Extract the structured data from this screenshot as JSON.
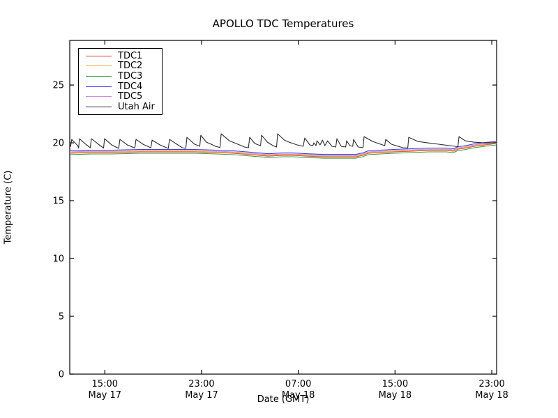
{
  "figure": {
    "background_color": "#ffffff",
    "axes_color": "#000000"
  },
  "chart_data": {
    "type": "line",
    "title": "APOLLO TDC Temperatures",
    "xlabel": "Date (GMT)",
    "ylabel": "Temperature (C)",
    "grid": false,
    "legend_position": "upper left",
    "x_unit": "hours after May 17 12:00 GMT",
    "xlim": [
      0.1,
      35.4
    ],
    "ylim": [
      0,
      28.86
    ],
    "yticks": [
      0,
      5,
      10,
      15,
      20,
      25
    ],
    "xticks": [
      {
        "x": 3,
        "time": "15:00",
        "date": "May 17"
      },
      {
        "x": 11,
        "time": "23:00",
        "date": "May 17"
      },
      {
        "x": 19,
        "time": "07:00",
        "date": "May 18"
      },
      {
        "x": 27,
        "time": "15:00",
        "date": "May 18"
      },
      {
        "x": 35,
        "time": "23:00",
        "date": "May 18"
      }
    ],
    "series": [
      {
        "name": "TDC1",
        "color": "#e53333",
        "points": [
          [
            0.1,
            19.1
          ],
          [
            1.83,
            19.16
          ],
          [
            3.56,
            19.16
          ],
          [
            5.86,
            19.22
          ],
          [
            8.17,
            19.22
          ],
          [
            10.48,
            19.22
          ],
          [
            12.21,
            19.16
          ],
          [
            13.65,
            19.1
          ],
          [
            15.1,
            18.98
          ],
          [
            16.54,
            18.85
          ],
          [
            17.69,
            18.92
          ],
          [
            18.56,
            18.92
          ],
          [
            19.71,
            18.85
          ],
          [
            21.15,
            18.79
          ],
          [
            22.59,
            18.79
          ],
          [
            23.75,
            18.79
          ],
          [
            24.32,
            18.92
          ],
          [
            24.78,
            19.1
          ],
          [
            25.76,
            19.16
          ],
          [
            26.92,
            19.22
          ],
          [
            28.36,
            19.28
          ],
          [
            29.8,
            19.34
          ],
          [
            31.25,
            19.34
          ],
          [
            31.82,
            19.28
          ],
          [
            32.23,
            19.46
          ],
          [
            32.69,
            19.52
          ],
          [
            33.56,
            19.7
          ],
          [
            34.42,
            19.82
          ],
          [
            35.4,
            19.94
          ]
        ]
      },
      {
        "name": "TDC2",
        "color": "#f5a83c",
        "points": [
          [
            0.1,
            19.15
          ],
          [
            1.83,
            19.21
          ],
          [
            3.56,
            19.21
          ],
          [
            5.86,
            19.27
          ],
          [
            8.17,
            19.27
          ],
          [
            10.48,
            19.27
          ],
          [
            12.21,
            19.21
          ],
          [
            13.65,
            19.15
          ],
          [
            15.1,
            19.03
          ],
          [
            16.54,
            18.9
          ],
          [
            17.69,
            18.97
          ],
          [
            18.56,
            18.97
          ],
          [
            19.71,
            18.9
          ],
          [
            21.15,
            18.84
          ],
          [
            22.59,
            18.84
          ],
          [
            23.75,
            18.84
          ],
          [
            24.32,
            18.97
          ],
          [
            24.78,
            19.15
          ],
          [
            25.76,
            19.21
          ],
          [
            26.92,
            19.27
          ],
          [
            28.36,
            19.33
          ],
          [
            29.8,
            19.39
          ],
          [
            31.25,
            19.39
          ],
          [
            31.82,
            19.33
          ],
          [
            32.23,
            19.51
          ],
          [
            32.69,
            19.57
          ],
          [
            33.56,
            19.75
          ],
          [
            34.42,
            19.87
          ],
          [
            35.4,
            19.99
          ]
        ]
      },
      {
        "name": "TDC3",
        "color": "#3a9a3a",
        "points": [
          [
            0.1,
            18.98
          ],
          [
            1.83,
            19.04
          ],
          [
            3.56,
            19.04
          ],
          [
            5.86,
            19.1
          ],
          [
            8.17,
            19.1
          ],
          [
            10.48,
            19.1
          ],
          [
            12.21,
            19.04
          ],
          [
            13.65,
            18.98
          ],
          [
            15.1,
            18.86
          ],
          [
            16.54,
            18.73
          ],
          [
            17.69,
            18.8
          ],
          [
            18.56,
            18.8
          ],
          [
            19.71,
            18.73
          ],
          [
            21.15,
            18.67
          ],
          [
            22.59,
            18.67
          ],
          [
            23.75,
            18.67
          ],
          [
            24.32,
            18.8
          ],
          [
            24.78,
            18.98
          ],
          [
            25.76,
            19.04
          ],
          [
            26.92,
            19.1
          ],
          [
            28.36,
            19.16
          ],
          [
            29.8,
            19.22
          ],
          [
            31.25,
            19.22
          ],
          [
            31.82,
            19.16
          ],
          [
            32.23,
            19.34
          ],
          [
            32.69,
            19.4
          ],
          [
            33.56,
            19.58
          ],
          [
            34.42,
            19.7
          ],
          [
            35.4,
            19.82
          ]
        ]
      },
      {
        "name": "TDC4",
        "color": "#3c3ce6",
        "points": [
          [
            0.1,
            19.31
          ],
          [
            1.83,
            19.37
          ],
          [
            3.56,
            19.37
          ],
          [
            5.86,
            19.43
          ],
          [
            8.17,
            19.43
          ],
          [
            10.48,
            19.43
          ],
          [
            12.21,
            19.37
          ],
          [
            13.65,
            19.31
          ],
          [
            15.1,
            19.19
          ],
          [
            16.54,
            19.06
          ],
          [
            17.69,
            19.13
          ],
          [
            18.56,
            19.13
          ],
          [
            19.71,
            19.06
          ],
          [
            21.15,
            19.0
          ],
          [
            22.59,
            19.0
          ],
          [
            23.75,
            19.0
          ],
          [
            24.32,
            19.13
          ],
          [
            24.78,
            19.31
          ],
          [
            25.76,
            19.37
          ],
          [
            26.92,
            19.43
          ],
          [
            28.36,
            19.49
          ],
          [
            29.8,
            19.55
          ],
          [
            31.25,
            19.55
          ],
          [
            31.82,
            19.49
          ],
          [
            32.23,
            19.67
          ],
          [
            32.69,
            19.73
          ],
          [
            33.56,
            19.91
          ],
          [
            34.42,
            20.03
          ],
          [
            35.4,
            20.12
          ]
        ]
      },
      {
        "name": "TDC5",
        "color": "#c98fd6",
        "points": [
          [
            0.1,
            19.22
          ],
          [
            1.83,
            19.28
          ],
          [
            3.56,
            19.28
          ],
          [
            5.86,
            19.34
          ],
          [
            8.17,
            19.34
          ],
          [
            10.48,
            19.34
          ],
          [
            12.21,
            19.28
          ],
          [
            13.65,
            19.22
          ],
          [
            15.1,
            19.1
          ],
          [
            16.54,
            18.97
          ],
          [
            17.69,
            19.04
          ],
          [
            18.56,
            19.04
          ],
          [
            19.71,
            18.97
          ],
          [
            21.15,
            18.91
          ],
          [
            22.59,
            18.91
          ],
          [
            23.75,
            18.91
          ],
          [
            24.32,
            19.04
          ],
          [
            24.78,
            19.22
          ],
          [
            25.76,
            19.28
          ],
          [
            26.92,
            19.34
          ],
          [
            28.36,
            19.4
          ],
          [
            29.8,
            19.46
          ],
          [
            31.25,
            19.46
          ],
          [
            31.82,
            19.4
          ],
          [
            32.23,
            19.58
          ],
          [
            32.69,
            19.64
          ],
          [
            33.56,
            19.82
          ],
          [
            34.42,
            19.94
          ],
          [
            35.4,
            20.06
          ]
        ]
      },
      {
        "name": "Utah Air",
        "color": "#2b2b2b",
        "points": [
          [
            0.1,
            19.88
          ],
          [
            0.17,
            19.7
          ],
          [
            0.27,
            20.3
          ],
          [
            0.75,
            19.76
          ],
          [
            0.83,
            19.55
          ],
          [
            0.9,
            20.36
          ],
          [
            1.45,
            19.85
          ],
          [
            1.8,
            19.58
          ],
          [
            1.89,
            20.36
          ],
          [
            2.5,
            19.85
          ],
          [
            2.9,
            19.55
          ],
          [
            2.98,
            20.36
          ],
          [
            3.6,
            19.8
          ],
          [
            4.15,
            19.52
          ],
          [
            4.25,
            20.3
          ],
          [
            4.9,
            19.8
          ],
          [
            5.48,
            19.55
          ],
          [
            5.58,
            20.3
          ],
          [
            6.2,
            19.85
          ],
          [
            6.8,
            19.58
          ],
          [
            6.91,
            20.24
          ],
          [
            7.6,
            19.8
          ],
          [
            8.25,
            19.52
          ],
          [
            8.35,
            20.3
          ],
          [
            9.0,
            19.85
          ],
          [
            9.4,
            19.58
          ],
          [
            9.7,
            19.52
          ],
          [
            9.79,
            20.48
          ],
          [
            10.4,
            19.9
          ],
          [
            10.85,
            19.7
          ],
          [
            10.94,
            20.66
          ],
          [
            11.4,
            20.06
          ],
          [
            11.8,
            19.88
          ],
          [
            12.15,
            19.7
          ],
          [
            12.52,
            19.6
          ],
          [
            12.62,
            20.78
          ],
          [
            13.3,
            20.18
          ],
          [
            14.0,
            19.88
          ],
          [
            14.55,
            19.64
          ],
          [
            14.88,
            19.58
          ],
          [
            14.98,
            20.48
          ],
          [
            15.4,
            19.94
          ],
          [
            15.7,
            19.82
          ],
          [
            15.88,
            19.76
          ],
          [
            15.96,
            20.66
          ],
          [
            16.45,
            20.06
          ],
          [
            16.9,
            19.76
          ],
          [
            17.2,
            19.64
          ],
          [
            17.29,
            20.78
          ],
          [
            17.85,
            20.24
          ],
          [
            18.25,
            20.06
          ],
          [
            18.9,
            19.82
          ],
          [
            19.4,
            19.7
          ],
          [
            19.54,
            20.42
          ],
          [
            19.95,
            19.82
          ],
          [
            20.2,
            19.76
          ],
          [
            20.29,
            20.0
          ],
          [
            20.46,
            19.76
          ],
          [
            20.55,
            20.18
          ],
          [
            20.8,
            19.82
          ],
          [
            21.0,
            20.24
          ],
          [
            21.2,
            19.76
          ],
          [
            21.42,
            20.18
          ],
          [
            21.78,
            19.7
          ],
          [
            22.1,
            19.64
          ],
          [
            22.19,
            20.36
          ],
          [
            22.55,
            19.7
          ],
          [
            22.92,
            19.64
          ],
          [
            23.0,
            20.18
          ],
          [
            23.25,
            19.76
          ],
          [
            23.5,
            19.7
          ],
          [
            23.57,
            20.3
          ],
          [
            23.95,
            19.64
          ],
          [
            24.35,
            19.58
          ],
          [
            24.44,
            20.54
          ],
          [
            25.15,
            20.12
          ],
          [
            25.8,
            19.88
          ],
          [
            26.15,
            19.76
          ],
          [
            26.23,
            20.3
          ],
          [
            26.7,
            19.88
          ],
          [
            27.25,
            19.7
          ],
          [
            27.65,
            19.58
          ],
          [
            28.05,
            19.55
          ],
          [
            28.13,
            20.48
          ],
          [
            28.9,
            20.12
          ],
          [
            29.7,
            20.0
          ],
          [
            30.6,
            19.88
          ],
          [
            31.5,
            19.76
          ],
          [
            32.2,
            19.67
          ],
          [
            32.29,
            20.54
          ],
          [
            32.8,
            20.18
          ],
          [
            33.5,
            20.06
          ],
          [
            34.4,
            20.0
          ],
          [
            35.05,
            20.0
          ],
          [
            35.4,
            20.03
          ]
        ]
      }
    ]
  }
}
